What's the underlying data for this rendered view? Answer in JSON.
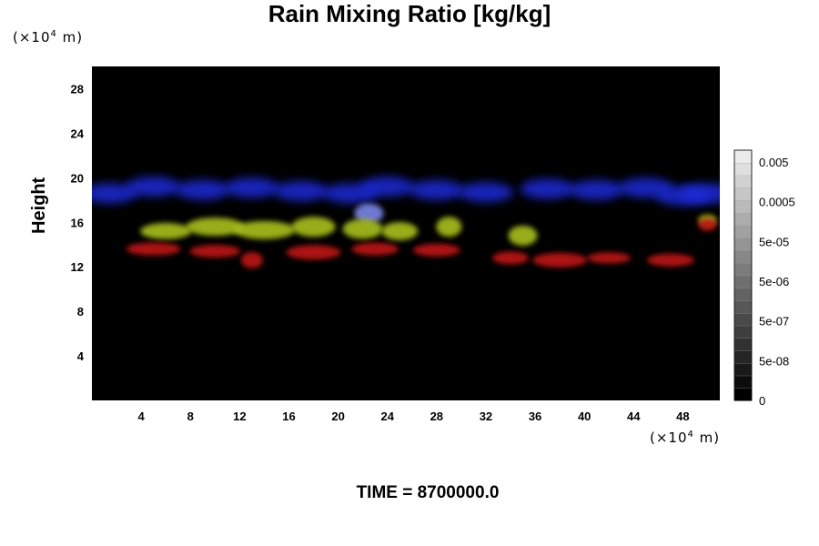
{
  "chart_data": {
    "type": "heatmap",
    "title": "Rain Mixing Ratio [kg/kg]",
    "ylabel": "Height",
    "xlabel": "",
    "x_unit": "(×10",
    "x_unit_exp": "4",
    "x_unit_suffix": " m)",
    "y_unit": "(×10",
    "y_unit_exp": "4",
    "y_unit_suffix": " m)",
    "xlim": [
      0,
      51
    ],
    "ylim": [
      0,
      30
    ],
    "x_ticks": [
      4,
      8,
      12,
      16,
      20,
      24,
      28,
      32,
      36,
      40,
      44,
      48
    ],
    "y_ticks": [
      4,
      8,
      12,
      16,
      20,
      24,
      28
    ],
    "colorbar_labels": [
      "0",
      "5e-08",
      "5e-07",
      "5e-06",
      "5e-05",
      "0.0005",
      "0.005"
    ],
    "background_color": "#000000",
    "layers": [
      {
        "color": "#1e2ad8",
        "y_range": [
          17,
          20
        ]
      },
      {
        "color": "#a8c01a",
        "y_range": [
          14,
          17
        ]
      },
      {
        "color": "#c01414",
        "y_range": [
          11.5,
          14.5
        ]
      }
    ],
    "footer": "TIME = 8700000.0"
  }
}
